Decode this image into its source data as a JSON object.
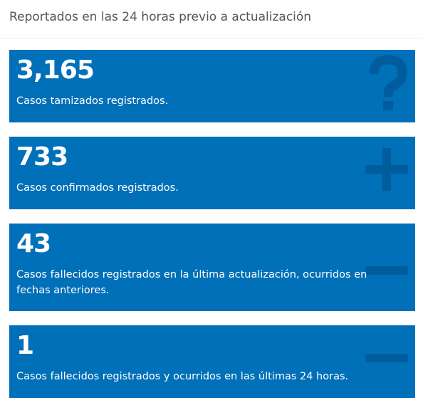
{
  "header": {
    "title": "Reportados en las 24 horas previo a actualización"
  },
  "cards": [
    {
      "value": "3,165",
      "label": "Casos tamizados registrados."
    },
    {
      "value": "733",
      "label": "Casos confirmados registrados."
    },
    {
      "value": "43",
      "label": "Casos fallecidos registrados en la última actualización, ocurridos en fechas anteriores."
    },
    {
      "value": "1",
      "label": "Casos fallecidos registrados y ocurridos en las últimas 24 horas."
    }
  ]
}
